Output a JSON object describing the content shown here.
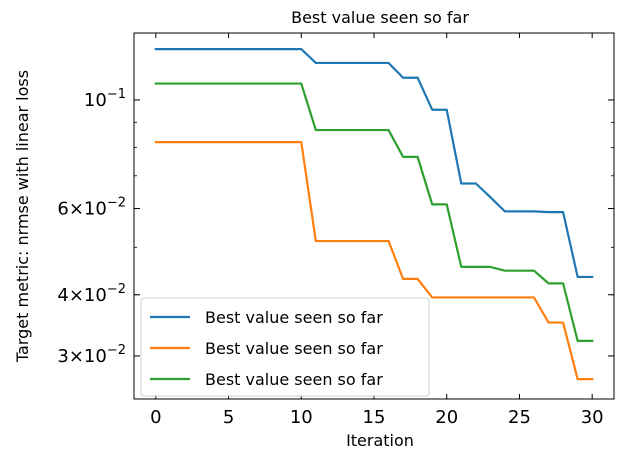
{
  "chart_data": {
    "type": "line",
    "title": "Best value seen so far",
    "xlabel": "Iteration",
    "ylabel": "Target metric: nrmse with linear loss",
    "yscale": "log",
    "xlim": [
      -1.5,
      31.5
    ],
    "ylim": [
      0.0245,
      0.137
    ],
    "xticks": [
      0,
      5,
      10,
      15,
      20,
      25,
      30
    ],
    "yticks": [
      {
        "value": 0.1,
        "base": "10",
        "exp": "−1"
      },
      {
        "value": 0.06,
        "mant": "6",
        "base": "10",
        "exp": "−2"
      },
      {
        "value": 0.04,
        "mant": "4",
        "base": "10",
        "exp": "−2"
      },
      {
        "value": 0.03,
        "mant": "3",
        "base": "10",
        "exp": "−2"
      }
    ],
    "grid": false,
    "legend_position": "lower-left",
    "x": [
      0,
      1,
      2,
      3,
      4,
      5,
      6,
      7,
      8,
      9,
      10,
      11,
      12,
      13,
      14,
      15,
      16,
      17,
      18,
      19,
      20,
      21,
      22,
      23,
      24,
      25,
      26,
      27,
      28,
      29,
      30
    ],
    "series": [
      {
        "name": "Best value seen so far",
        "color": "#1f77b4",
        "values": [
          0.127,
          0.127,
          0.127,
          0.127,
          0.127,
          0.127,
          0.127,
          0.127,
          0.127,
          0.127,
          0.127,
          0.119,
          0.119,
          0.119,
          0.119,
          0.119,
          0.119,
          0.111,
          0.111,
          0.0955,
          0.0955,
          0.0675,
          0.0675,
          0.0633,
          0.0592,
          0.0592,
          0.0592,
          0.059,
          0.059,
          0.0435,
          0.0435
        ]
      },
      {
        "name": "Best value seen so far",
        "color": "#ff7f0e",
        "values": [
          0.082,
          0.082,
          0.082,
          0.082,
          0.082,
          0.082,
          0.082,
          0.082,
          0.082,
          0.082,
          0.082,
          0.0515,
          0.0515,
          0.0515,
          0.0515,
          0.0515,
          0.0515,
          0.0431,
          0.0431,
          0.0395,
          0.0395,
          0.0395,
          0.0395,
          0.0395,
          0.0395,
          0.0395,
          0.0395,
          0.0351,
          0.0351,
          0.0269,
          0.0269
        ]
      },
      {
        "name": "Best value seen so far",
        "color": "#2ca02c",
        "values": [
          0.108,
          0.108,
          0.108,
          0.108,
          0.108,
          0.108,
          0.108,
          0.108,
          0.108,
          0.108,
          0.108,
          0.0868,
          0.0868,
          0.0868,
          0.0868,
          0.0868,
          0.0868,
          0.0765,
          0.0765,
          0.0612,
          0.0612,
          0.0456,
          0.0456,
          0.0456,
          0.0448,
          0.0448,
          0.0448,
          0.0422,
          0.0422,
          0.0322,
          0.0322
        ]
      }
    ]
  }
}
